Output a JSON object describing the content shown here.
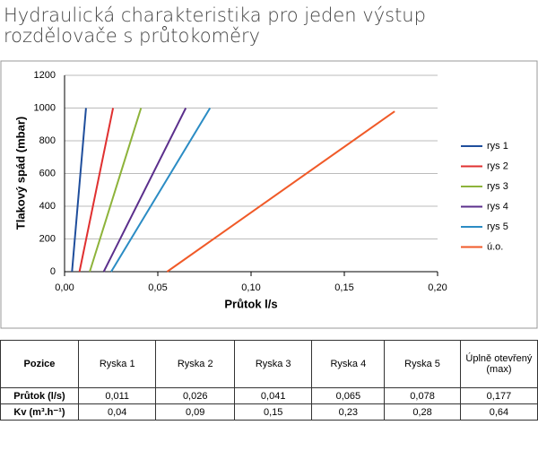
{
  "chart_data": {
    "type": "line",
    "title": "Hydraulická charakteristika pro jeden výstup rozdělovače s průtokoměry",
    "x_label": "Průtok l/s",
    "y_label": "Tlakový spád (mbar)",
    "xlim": [
      0,
      0.2
    ],
    "ylim": [
      0,
      1200
    ],
    "xticks": [
      {
        "value": 0,
        "label": "0,00"
      },
      {
        "value": 0.05,
        "label": "0,05"
      },
      {
        "value": 0.1,
        "label": "0,10"
      },
      {
        "value": 0.15,
        "label": "0,15"
      },
      {
        "value": 0.2,
        "label": "0,20"
      }
    ],
    "yticks": [
      0,
      200,
      400,
      600,
      800,
      1000,
      1200
    ],
    "grid": true,
    "legend": "right",
    "series": [
      {
        "name": "rys 1",
        "color": "#1f4e9c",
        "x": [
          0.004,
          0.0115
        ],
        "values": [
          0,
          1000
        ]
      },
      {
        "name": "rys 2",
        "color": "#e03030",
        "x": [
          0.008,
          0.026
        ],
        "values": [
          0,
          1000
        ]
      },
      {
        "name": "rys 3",
        "color": "#8db33a",
        "x": [
          0.0135,
          0.041
        ],
        "values": [
          0,
          1000
        ]
      },
      {
        "name": "rys 4",
        "color": "#5b2f8c",
        "x": [
          0.021,
          0.065
        ],
        "values": [
          0,
          1000
        ]
      },
      {
        "name": "rys 5",
        "color": "#2b8cc4",
        "x": [
          0.025,
          0.078
        ],
        "values": [
          0,
          1000
        ]
      },
      {
        "name": "ú.o.",
        "color": "#f05a28",
        "x": [
          0.055,
          0.177
        ],
        "values": [
          0,
          980
        ]
      }
    ]
  },
  "table": {
    "header": [
      "Pozice",
      "Ryska 1",
      "Ryska 2",
      "Ryska 3",
      "Ryska 4",
      "Ryska 5",
      "Úplně otevřený (max)"
    ],
    "rows": [
      [
        "Průtok (l/s)",
        "0,011",
        "0,026",
        "0,041",
        "0,065",
        "0,078",
        "0,177"
      ],
      [
        "Kv (m³.h⁻¹)",
        "0,04",
        "0,09",
        "0,15",
        "0,23",
        "0,28",
        "0,64"
      ]
    ]
  }
}
